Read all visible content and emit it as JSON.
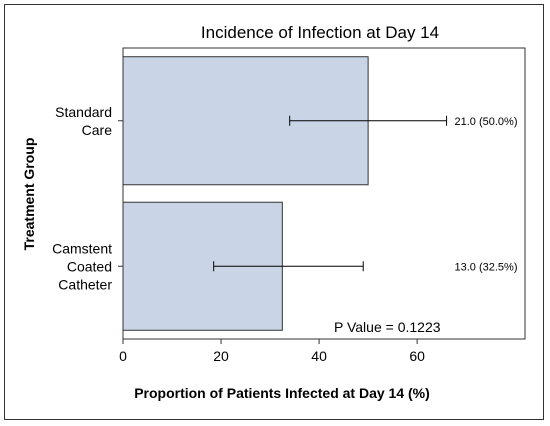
{
  "chart_data": {
    "type": "bar",
    "orientation": "horizontal",
    "title": "Incidence of Infection at Day 14",
    "xlabel": "Proportion of Patients Infected at Day 14 (%)",
    "ylabel": "Treatment Group",
    "xlim": [
      0,
      82
    ],
    "xticks": [
      0,
      20,
      40,
      60
    ],
    "categories": [
      [
        "Standard",
        "Care"
      ],
      [
        "Camstent",
        "Coated",
        "Catheter"
      ]
    ],
    "values": [
      50.0,
      32.5
    ],
    "error_low": [
      34.0,
      18.5
    ],
    "error_high": [
      66.0,
      49.0
    ],
    "data_labels": [
      "21.0 (50.0%)",
      "13.0 (32.5%)"
    ],
    "annotation": "P Value = 0.1223",
    "bar_color": "#c9d5e6",
    "bar_edge": "#333333"
  }
}
